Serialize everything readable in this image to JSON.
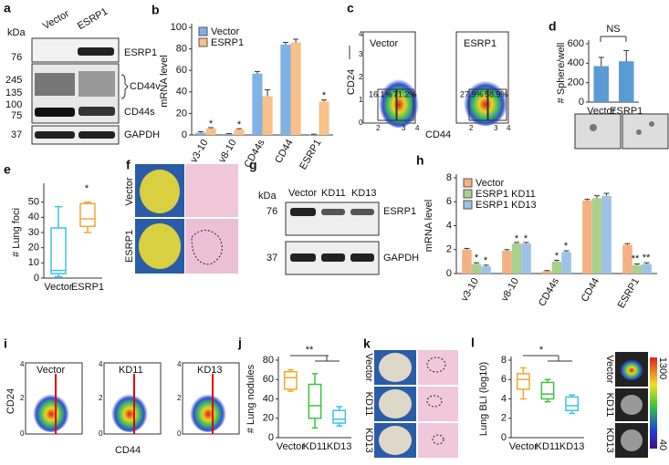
{
  "panels": {
    "a": {
      "label": "a",
      "kda": "kDa",
      "lanes": [
        "Vector",
        "ESRP1"
      ],
      "markers": [
        "76",
        "245",
        "135",
        "100",
        "75",
        "37"
      ],
      "bands": [
        "ESRP1",
        "CD44v",
        "CD44s",
        "GAPDH"
      ]
    },
    "c": {
      "label": "c",
      "plots": [
        "Vector",
        "ESRP1"
      ],
      "y_axis": "CD24",
      "x_axis": "CD44",
      "ticks": [
        "0",
        "1",
        "2",
        "3",
        "4"
      ],
      "gates": [
        "16.1%",
        "71.2%",
        "27.9%",
        "58.9%"
      ]
    },
    "f": {
      "label": "f",
      "rows": [
        "Vector",
        "ESRP1"
      ]
    },
    "g": {
      "label": "g",
      "kda": "kDa",
      "lanes": [
        "Vector",
        "KD11",
        "KD13"
      ],
      "markers": [
        "76",
        "37"
      ],
      "bands": [
        "ESRP1",
        "GAPDH"
      ]
    },
    "i": {
      "label": "i",
      "plots": [
        "Vector",
        "KD11",
        "KD13"
      ],
      "y_axis": "CD24",
      "x_axis": "CD44",
      "ticks": [
        "0",
        "1",
        "2",
        "3",
        "4"
      ]
    },
    "k": {
      "label": "k",
      "rows": [
        "Vector",
        "KD11",
        "KD13"
      ]
    },
    "l_images": {
      "rows": [
        "Vector",
        "KD11",
        "KD13"
      ],
      "scale": [
        "1300",
        "40"
      ]
    }
  },
  "chart_data": [
    {
      "type": "bar",
      "panel": "b",
      "ylabel": "mRNA level",
      "categories": [
        "v3-10",
        "v8-10",
        "CD44s",
        "CD44",
        "ESRP1"
      ],
      "series": [
        {
          "name": "Vector",
          "color": "#7fb2e5",
          "values": [
            2,
            1,
            57,
            84,
            0.5
          ],
          "errors": [
            1,
            0.3,
            2,
            2,
            0.2
          ]
        },
        {
          "name": "ESRP1",
          "color": "#f9c08a",
          "values": [
            6,
            5,
            36,
            86,
            31
          ],
          "errors": [
            0.8,
            0.8,
            6,
            3,
            1.5
          ]
        }
      ],
      "ylim": [
        0,
        100
      ],
      "yticks": [
        0,
        20,
        40,
        60,
        80,
        100
      ],
      "annotations": [
        "*",
        "*",
        "*"
      ]
    },
    {
      "type": "bar",
      "panel": "d",
      "ylabel": "# Sphere/well",
      "categories": [
        "Vector",
        "ESRP1"
      ],
      "values": [
        370,
        420
      ],
      "errors": [
        90,
        110
      ],
      "color": "#5b9bd5",
      "ylim": [
        0,
        600
      ],
      "yticks": [
        0,
        200,
        400,
        600
      ],
      "annotations": [
        "NS"
      ]
    },
    {
      "type": "box",
      "panel": "e",
      "ylabel": "# Lung foci",
      "categories": [
        "Vector",
        "ESRP1"
      ],
      "colors": [
        "#3fc1e8",
        "#f0a830"
      ],
      "boxes": [
        {
          "min": 1,
          "q1": 3,
          "median": 5,
          "q3": 33,
          "max": 47
        },
        {
          "min": 30,
          "q1": 34,
          "median": 39,
          "q3": 49,
          "max": 50
        }
      ],
      "ylim": [
        0,
        60
      ],
      "yticks": [
        0,
        10,
        20,
        30,
        40,
        50
      ],
      "annotations": [
        "*"
      ]
    },
    {
      "type": "bar",
      "panel": "h",
      "ylabel": "mRNA level",
      "categories": [
        "v3-10",
        "v8-10",
        "CD44s",
        "CD44",
        "ESRP1"
      ],
      "series": [
        {
          "name": "Vector",
          "color": "#f4b183",
          "values": [
            2.0,
            1.9,
            0.2,
            6.1,
            2.4
          ],
          "errors": [
            0.1,
            0.1,
            0.05,
            0.1,
            0.1
          ]
        },
        {
          "name": "ESRP1 KD11",
          "color": "#a9d18e",
          "values": [
            0.8,
            2.5,
            1.0,
            6.3,
            0.7
          ],
          "errors": [
            0.1,
            0.1,
            0.1,
            0.2,
            0.1
          ]
        },
        {
          "name": "ESRP1 KD13",
          "color": "#9dc3e6",
          "values": [
            0.6,
            2.5,
            1.8,
            6.5,
            0.8
          ],
          "errors": [
            0.1,
            0.1,
            0.1,
            0.2,
            0.1
          ]
        }
      ],
      "ylim": [
        0,
        8
      ],
      "yticks": [
        0,
        2,
        4,
        6,
        8
      ],
      "annotations": [
        "*",
        "*",
        "*",
        "*",
        "*",
        "*",
        "**",
        "**"
      ]
    },
    {
      "type": "box",
      "panel": "j",
      "ylabel": "# Lung nodules",
      "categories": [
        "Vector",
        "KD11",
        "KD13"
      ],
      "colors": [
        "#f0a830",
        "#3cc43c",
        "#3fc1e8"
      ],
      "boxes": [
        {
          "min": 48,
          "q1": 50,
          "median": 62,
          "q3": 68,
          "max": 70
        },
        {
          "min": 10,
          "q1": 20,
          "median": 33,
          "q3": 55,
          "max": 66
        },
        {
          "min": 12,
          "q1": 15,
          "median": 19,
          "q3": 28,
          "max": 32
        }
      ],
      "ylim": [
        0,
        80
      ],
      "yticks": [
        0,
        20,
        40,
        60,
        80
      ],
      "annotations": [
        "**"
      ]
    },
    {
      "type": "box",
      "panel": "l",
      "ylabel": "Lung BLI  (log10)",
      "categories": [
        "Vector",
        "KD11",
        "KD13"
      ],
      "colors": [
        "#f0a830",
        "#3cc43c",
        "#3fc1e8"
      ],
      "boxes": [
        {
          "min": 4,
          "q1": 5,
          "median": 6,
          "q3": 6.6,
          "max": 7.2
        },
        {
          "min": 3.7,
          "q1": 4,
          "median": 4.5,
          "q3": 5.7,
          "max": 6
        },
        {
          "min": 2.5,
          "q1": 2.8,
          "median": 3.3,
          "q3": 4.2,
          "max": 4.4
        }
      ],
      "ylim": [
        0,
        8
      ],
      "yticks": [
        0,
        2,
        4,
        6,
        8
      ],
      "annotations": [
        "*"
      ]
    }
  ]
}
